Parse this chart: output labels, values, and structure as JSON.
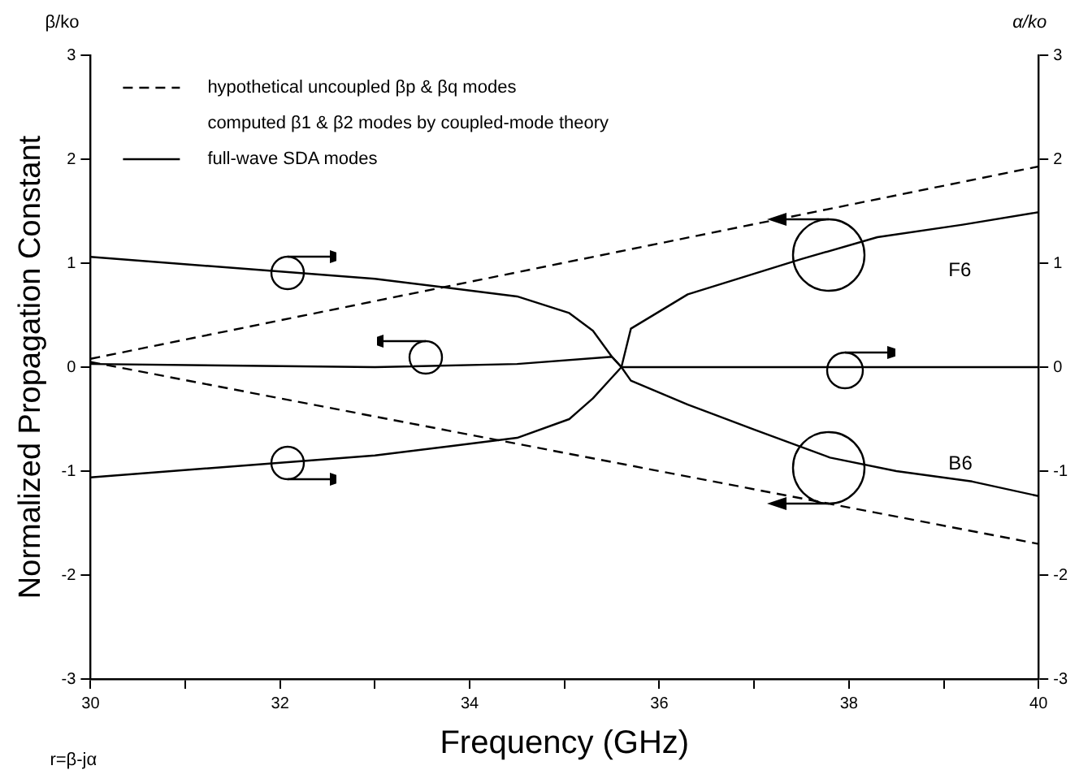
{
  "chart_data": {
    "type": "line",
    "ylabel": "Normalized Propagation Constant",
    "y2label": "α/ko",
    "xlabel": "Frequency (GHz)",
    "annotations": [
      "β/ko",
      "computed β1 & β2 modes by coupled-mode theory",
      "r=β-jα",
      "F6",
      "B6"
    ],
    "xlim": [
      30,
      40
    ],
    "xticks": [
      30,
      {
        "value": 31,
        "label": null
      },
      32,
      {
        "value": 33,
        "label": null
      },
      34,
      {
        "value": 35,
        "label": null
      },
      36,
      {
        "value": 37,
        "label": null
      },
      38,
      {
        "value": 39,
        "label": null
      },
      40
    ],
    "ylim": [
      -3,
      3
    ],
    "yticks": [
      -3,
      -2,
      -1,
      0,
      1,
      2,
      3
    ],
    "y2lim": [
      -3,
      3
    ],
    "y2ticks": [
      -3,
      -2,
      -1,
      0,
      1,
      2,
      3
    ],
    "grid": false,
    "legend": "top left",
    "marker": "none",
    "series": [
      {
        "name": "hypothetical uncoupled βp & βq modes",
        "color": "#000000",
        "line_style": "dashed",
        "x": [
          30,
          40
        ],
        "values": [
          0.08,
          1.93
        ]
      },
      {
        "color": "#000000",
        "line_style": "dashed",
        "x": [
          30,
          40
        ],
        "values": [
          0.05,
          -1.7
        ]
      },
      {
        "name": "full-wave SDA modes",
        "color": "#000000",
        "line_style": "solid",
        "x": [
          30,
          32,
          33,
          33.8,
          34.5,
          35.05,
          35.3,
          35.5,
          35.6,
          35.7,
          36.3,
          37,
          37.8,
          38.5,
          39.3,
          40
        ],
        "values": [
          1.06,
          0.92,
          0.85,
          0.76,
          0.68,
          0.52,
          0.35,
          0.1,
          0,
          -0.13,
          -0.36,
          -0.6,
          -0.87,
          -1.0,
          -1.1,
          -1.24
        ]
      },
      {
        "color": "#000000",
        "line_style": "solid",
        "x": [
          30,
          32,
          33,
          33.8,
          34.5,
          35.05,
          35.3,
          35.5,
          35.6,
          35.7,
          36.3,
          37.5,
          38.3,
          39.2,
          40
        ],
        "values": [
          -1.06,
          -0.92,
          -0.85,
          -0.76,
          -0.68,
          -0.5,
          -0.3,
          -0.1,
          0,
          0.37,
          0.7,
          1.04,
          1.25,
          1.37,
          1.49
        ]
      },
      {
        "color": "#000000",
        "line_style": "solid",
        "x": [
          30,
          33,
          34.5,
          35.5,
          35.6,
          40
        ],
        "values": [
          0.03,
          0,
          0.03,
          0.1,
          0,
          0
        ]
      }
    ]
  }
}
